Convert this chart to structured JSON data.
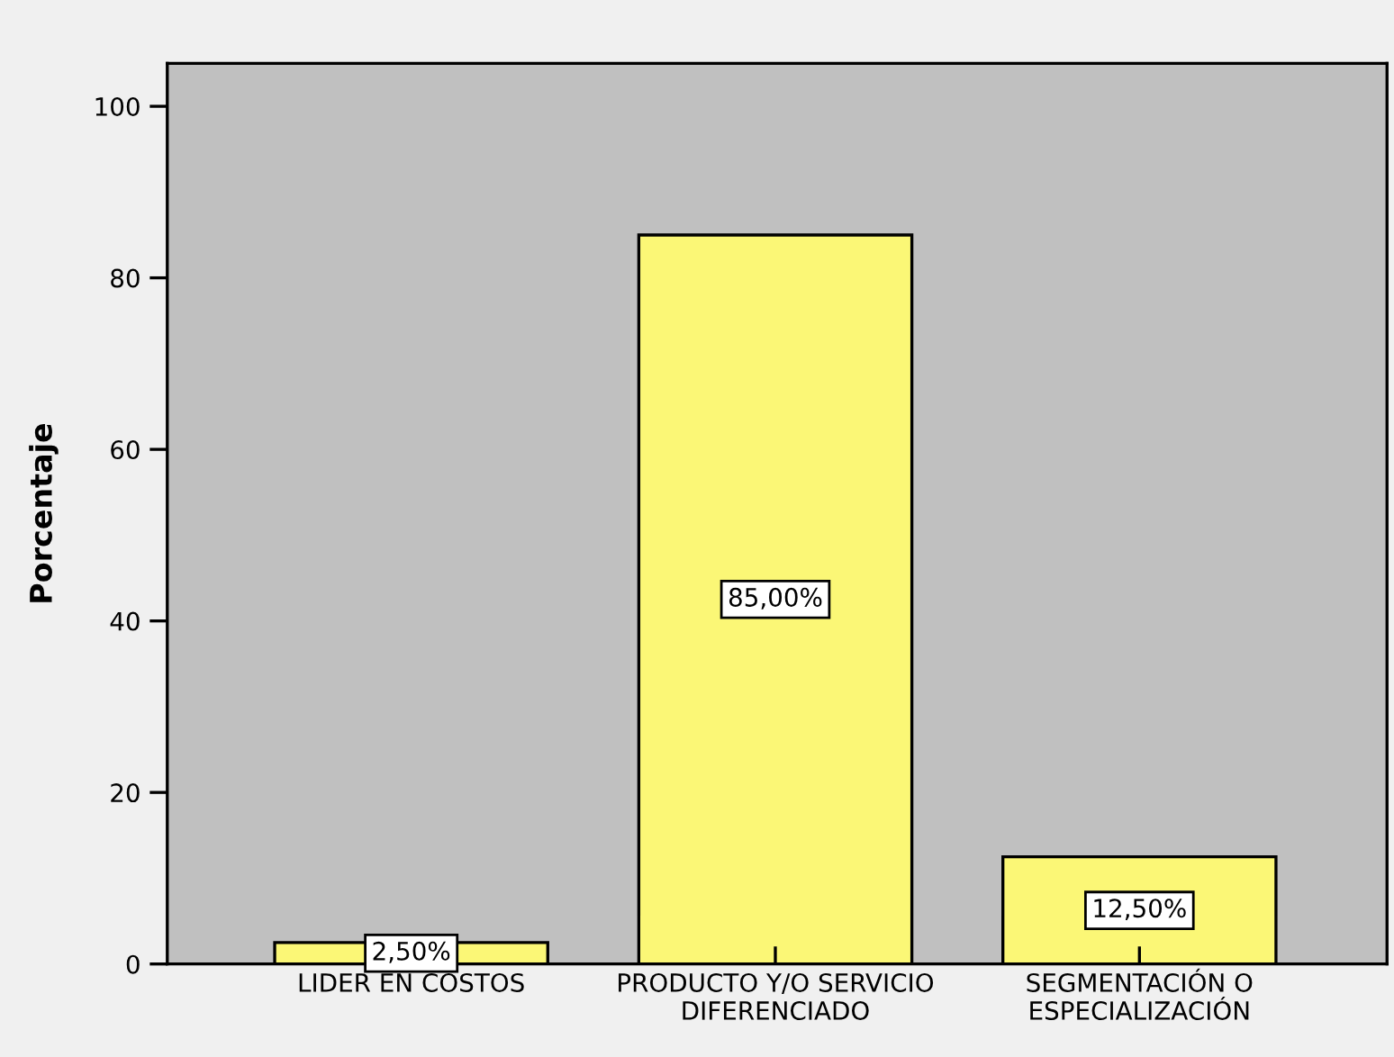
{
  "chart_data": {
    "type": "bar",
    "ylabel": "Porcentaje",
    "categories": [
      "LIDER EN COSTOS",
      "PRODUCTO Y/O SERVICIO\nDIFERENCIADO",
      "SEGMENTACIÓN O\nESPECIALIZACIÓN"
    ],
    "values": [
      2.5,
      85.0,
      12.5
    ],
    "color": "#fbf776",
    "value_labels": [
      "2,50%",
      "85,00%",
      "12,50%"
    ],
    "ylim": [
      0,
      105
    ],
    "yticks": [
      0,
      20,
      40,
      60,
      80,
      100
    ]
  }
}
